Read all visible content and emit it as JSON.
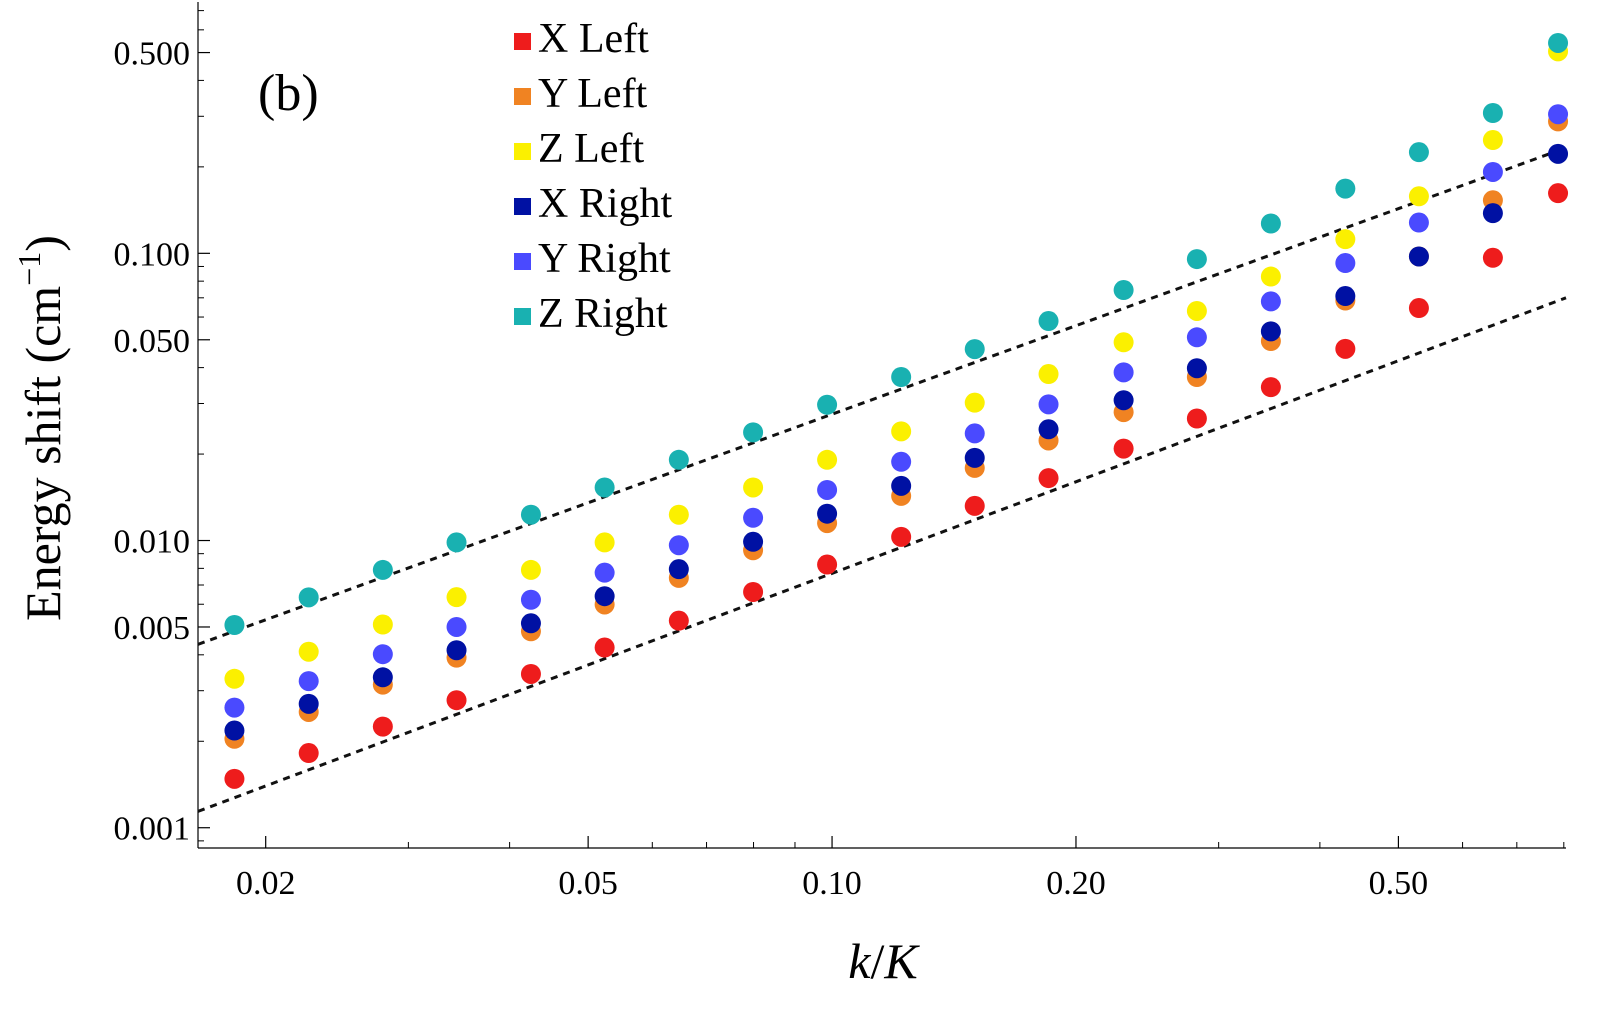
{
  "chart_data": {
    "type": "scatter",
    "panel_label": "(b)",
    "xlabel_k": "k",
    "xlabel_slash": "/",
    "xlabel_K": "K",
    "ylabel_main": "Energy shift (cm",
    "ylabel_sup": "−1",
    "ylabel_close": ")",
    "x_scale": "log",
    "y_scale": "log",
    "xlim": [
      0.0165,
      0.805
    ],
    "ylim": [
      0.00085,
      0.75
    ],
    "x_ticks": [
      {
        "value": 0.02,
        "label": "0.02"
      },
      {
        "value": 0.05,
        "label": "0.05"
      },
      {
        "value": 0.1,
        "label": "0.10"
      },
      {
        "value": 0.2,
        "label": "0.20"
      },
      {
        "value": 0.5,
        "label": "0.50"
      }
    ],
    "y_ticks": [
      {
        "value": 0.001,
        "label": "0.001"
      },
      {
        "value": 0.005,
        "label": "0.005"
      },
      {
        "value": 0.01,
        "label": "0.010"
      },
      {
        "value": 0.05,
        "label": "0.050"
      },
      {
        "value": 0.1,
        "label": "0.100"
      },
      {
        "value": 0.5,
        "label": "0.500"
      }
    ],
    "x": [
      0.0183,
      0.0226,
      0.0279,
      0.0344,
      0.0425,
      0.0524,
      0.0647,
      0.0799,
      0.0986,
      0.1217,
      0.15,
      0.185,
      0.229,
      0.282,
      0.348,
      0.43,
      0.53,
      0.654,
      0.787
    ],
    "series": [
      {
        "name": "X Left",
        "color": "#ee1c1c",
        "values": [
          0.00148,
          0.00182,
          0.00225,
          0.00278,
          0.00343,
          0.00424,
          0.00526,
          0.00662,
          0.00825,
          0.0103,
          0.0132,
          0.0165,
          0.0209,
          0.0266,
          0.0342,
          0.0465,
          0.0645,
          0.0965,
          0.162
        ]
      },
      {
        "name": "Y Left",
        "color": "#f08322",
        "values": [
          0.00204,
          0.00253,
          0.00315,
          0.00391,
          0.00483,
          0.00599,
          0.00741,
          0.00925,
          0.0115,
          0.0143,
          0.0179,
          0.0223,
          0.028,
          0.0371,
          0.0495,
          0.0685,
          0.0975,
          0.153,
          0.288
        ]
      },
      {
        "name": "Z Left",
        "color": "#fbf000",
        "values": [
          0.0033,
          0.0041,
          0.0051,
          0.00635,
          0.0079,
          0.00985,
          0.0123,
          0.0153,
          0.0191,
          0.024,
          0.0302,
          0.038,
          0.049,
          0.063,
          0.083,
          0.112,
          0.158,
          0.248,
          0.505
        ]
      },
      {
        "name": "X Right",
        "color": "#0011a3",
        "values": [
          0.00218,
          0.0027,
          0.00334,
          0.00415,
          0.00515,
          0.0064,
          0.00795,
          0.0099,
          0.0124,
          0.0155,
          0.0194,
          0.0244,
          0.0308,
          0.0398,
          0.0535,
          0.071,
          0.0975,
          0.138,
          0.222
        ]
      },
      {
        "name": "Y Right",
        "color": "#4a4aff",
        "values": [
          0.00262,
          0.00324,
          0.00402,
          0.005,
          0.00622,
          0.00773,
          0.00963,
          0.012,
          0.015,
          0.0188,
          0.0236,
          0.0298,
          0.0385,
          0.051,
          0.068,
          0.0925,
          0.128,
          0.192,
          0.305
        ]
      },
      {
        "name": "Z Right",
        "color": "#19b1b1",
        "values": [
          0.00508,
          0.00634,
          0.0079,
          0.00985,
          0.0123,
          0.0153,
          0.0191,
          0.0238,
          0.0297,
          0.0371,
          0.0464,
          0.0581,
          0.0745,
          0.0955,
          0.127,
          0.168,
          0.225,
          0.308,
          0.54
        ]
      }
    ],
    "reference_lines": [
      {
        "name": "upper-fit-line",
        "style": "dashed",
        "points": [
          [
            0.0165,
            0.00435
          ],
          [
            0.805,
            0.233
          ]
        ]
      },
      {
        "name": "lower-fit-line",
        "style": "dashed",
        "points": [
          [
            0.0165,
            0.00114
          ],
          [
            0.805,
            0.07
          ]
        ]
      }
    ],
    "legend": {
      "placement": "top-center-left"
    }
  }
}
